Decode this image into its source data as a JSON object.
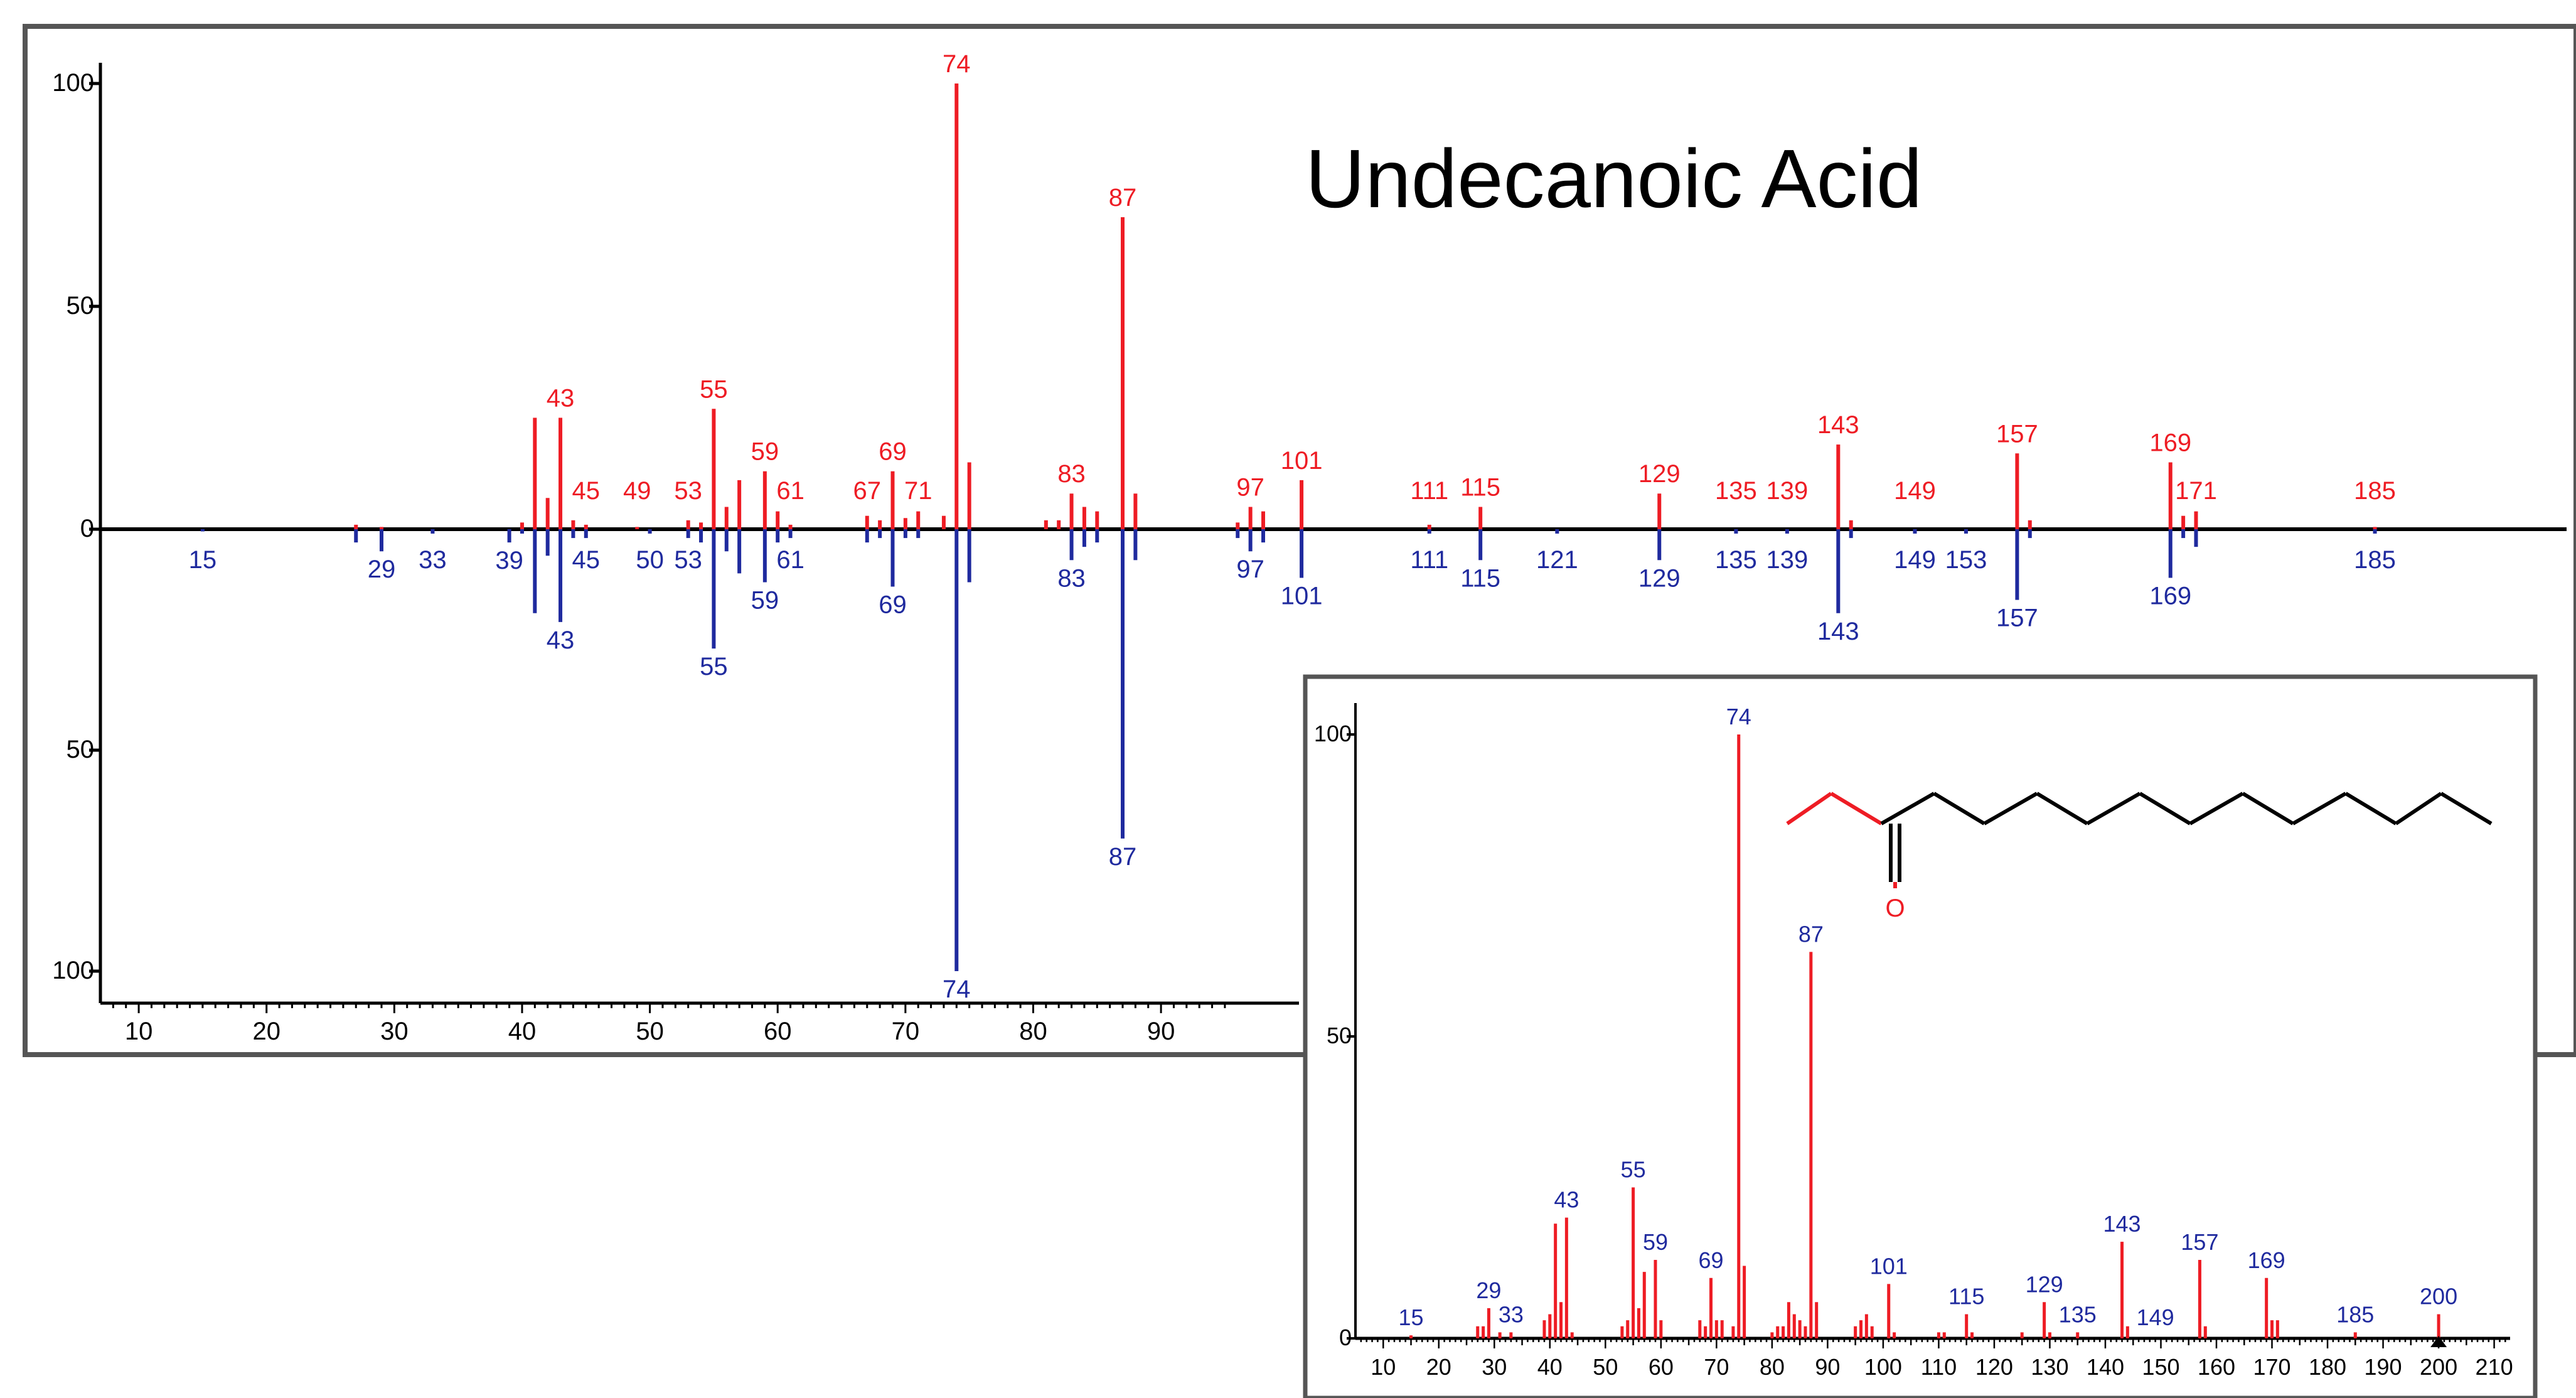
{
  "title": "Undecanoic Acid",
  "colors": {
    "sample": "#ee1c24",
    "library": "#1f2a9e",
    "axis": "#000000",
    "background": "#ffffff"
  },
  "chart_data": [
    {
      "type": "bar",
      "kind": "mirror-mass-spectrum",
      "title": "Undecanoic Acid",
      "xlim": [
        7,
        200
      ],
      "ylim": [
        -100,
        100
      ],
      "x_ticks": [
        10,
        20,
        30,
        40,
        50,
        60,
        70,
        80,
        90
      ],
      "y_ticks": [
        100,
        50,
        0,
        50,
        100
      ],
      "top_series": {
        "color": "red",
        "peaks": [
          [
            27,
            1
          ],
          [
            29,
            0.5
          ],
          [
            40,
            1.5
          ],
          [
            41,
            25
          ],
          [
            42,
            7
          ],
          [
            43,
            25
          ],
          [
            44,
            2
          ],
          [
            45,
            1
          ],
          [
            49,
            0.5
          ],
          [
            53,
            2
          ],
          [
            54,
            1.5
          ],
          [
            55,
            27
          ],
          [
            56,
            5
          ],
          [
            57,
            11
          ],
          [
            59,
            13
          ],
          [
            60,
            4
          ],
          [
            61,
            1
          ],
          [
            67,
            3
          ],
          [
            68,
            2
          ],
          [
            69,
            13
          ],
          [
            70,
            2.5
          ],
          [
            71,
            4
          ],
          [
            73,
            3
          ],
          [
            74,
            100
          ],
          [
            75,
            15
          ],
          [
            81,
            2
          ],
          [
            82,
            2
          ],
          [
            83,
            8
          ],
          [
            84,
            5
          ],
          [
            85,
            4
          ],
          [
            87,
            70
          ],
          [
            88,
            8
          ],
          [
            96,
            1.5
          ],
          [
            97,
            5
          ],
          [
            98,
            4
          ],
          [
            101,
            11
          ],
          [
            111,
            1
          ],
          [
            115,
            5
          ],
          [
            129,
            8
          ],
          [
            143,
            19
          ],
          [
            144,
            2
          ],
          [
            157,
            17
          ],
          [
            158,
            2
          ],
          [
            169,
            15
          ],
          [
            170,
            3
          ],
          [
            171,
            4
          ],
          [
            185,
            0.5
          ]
        ],
        "labels": [
          "43",
          "45",
          "49",
          "53",
          "55",
          "59",
          "61",
          "67",
          "69",
          "71",
          "74",
          "83",
          "87",
          "97",
          "101",
          "111",
          "115",
          "129",
          "135",
          "139",
          "143",
          "149",
          "157",
          "169",
          "171",
          "185"
        ]
      },
      "bottom_series": {
        "color": "blue",
        "peaks": [
          [
            15,
            0.5
          ],
          [
            27,
            3
          ],
          [
            29,
            5
          ],
          [
            33,
            1
          ],
          [
            39,
            3
          ],
          [
            40,
            1
          ],
          [
            41,
            19
          ],
          [
            42,
            6
          ],
          [
            43,
            21
          ],
          [
            44,
            2
          ],
          [
            45,
            2
          ],
          [
            50,
            1
          ],
          [
            53,
            2
          ],
          [
            54,
            3
          ],
          [
            55,
            27
          ],
          [
            56,
            5
          ],
          [
            57,
            10
          ],
          [
            59,
            12
          ],
          [
            60,
            3
          ],
          [
            61,
            2
          ],
          [
            67,
            3
          ],
          [
            68,
            2
          ],
          [
            69,
            13
          ],
          [
            70,
            2
          ],
          [
            71,
            2
          ],
          [
            74,
            100
          ],
          [
            75,
            12
          ],
          [
            83,
            7
          ],
          [
            84,
            4
          ],
          [
            85,
            3
          ],
          [
            87,
            70
          ],
          [
            88,
            7
          ],
          [
            96,
            2
          ],
          [
            97,
            5
          ],
          [
            98,
            3
          ],
          [
            101,
            11
          ],
          [
            111,
            1
          ],
          [
            115,
            7
          ],
          [
            121,
            1
          ],
          [
            129,
            7
          ],
          [
            135,
            1
          ],
          [
            139,
            1
          ],
          [
            143,
            19
          ],
          [
            144,
            2
          ],
          [
            149,
            1
          ],
          [
            153,
            1
          ],
          [
            157,
            16
          ],
          [
            158,
            2
          ],
          [
            169,
            11
          ],
          [
            170,
            2
          ],
          [
            171,
            4
          ],
          [
            185,
            1
          ]
        ],
        "labels": [
          "15",
          "29",
          "33",
          "39",
          "43",
          "45",
          "50",
          "53",
          "55",
          "59",
          "61",
          "69",
          "74",
          "83",
          "87",
          "97",
          "101",
          "111",
          "115",
          "121",
          "129",
          "135",
          "139",
          "143",
          "149",
          "153",
          "157",
          "169",
          "185"
        ]
      }
    },
    {
      "type": "bar",
      "kind": "mass-spectrum-inset",
      "xlim": [
        5,
        214
      ],
      "ylim": [
        0,
        100
      ],
      "x_ticks": [
        10,
        20,
        30,
        40,
        50,
        60,
        70,
        80,
        90,
        100,
        110,
        120,
        130,
        140,
        150,
        160,
        170,
        180,
        190,
        200,
        210
      ],
      "y_ticks": [
        100,
        50,
        0
      ],
      "structure_label": "O",
      "peaks": [
        [
          15,
          0.5
        ],
        [
          27,
          2
        ],
        [
          28,
          2
        ],
        [
          29,
          5
        ],
        [
          31,
          1
        ],
        [
          33,
          1
        ],
        [
          39,
          3
        ],
        [
          40,
          4
        ],
        [
          41,
          19
        ],
        [
          42,
          6
        ],
        [
          43,
          20
        ],
        [
          44,
          1
        ],
        [
          53,
          2
        ],
        [
          54,
          3
        ],
        [
          55,
          25
        ],
        [
          56,
          5
        ],
        [
          57,
          11
        ],
        [
          59,
          13
        ],
        [
          60,
          3
        ],
        [
          67,
          3
        ],
        [
          68,
          2
        ],
        [
          69,
          10
        ],
        [
          70,
          3
        ],
        [
          71,
          3
        ],
        [
          73,
          2
        ],
        [
          74,
          100
        ],
        [
          75,
          12
        ],
        [
          80,
          1
        ],
        [
          81,
          2
        ],
        [
          82,
          2
        ],
        [
          83,
          6
        ],
        [
          84,
          4
        ],
        [
          85,
          3
        ],
        [
          86,
          2
        ],
        [
          87,
          64
        ],
        [
          88,
          6
        ],
        [
          95,
          2
        ],
        [
          96,
          3
        ],
        [
          97,
          4
        ],
        [
          98,
          2
        ],
        [
          101,
          9
        ],
        [
          102,
          1
        ],
        [
          110,
          1
        ],
        [
          111,
          1
        ],
        [
          115,
          4
        ],
        [
          116,
          1
        ],
        [
          125,
          1
        ],
        [
          129,
          6
        ],
        [
          130,
          1
        ],
        [
          135,
          1
        ],
        [
          143,
          16
        ],
        [
          144,
          2
        ],
        [
          157,
          13
        ],
        [
          158,
          2
        ],
        [
          169,
          10
        ],
        [
          170,
          3
        ],
        [
          171,
          3
        ],
        [
          185,
          1
        ],
        [
          200,
          4
        ]
      ],
      "labels": [
        "15",
        "29",
        "33",
        "43",
        "55",
        "59",
        "69",
        "74",
        "87",
        "101",
        "115",
        "129",
        "135",
        "143",
        "149",
        "157",
        "169",
        "185",
        "200"
      ]
    }
  ]
}
